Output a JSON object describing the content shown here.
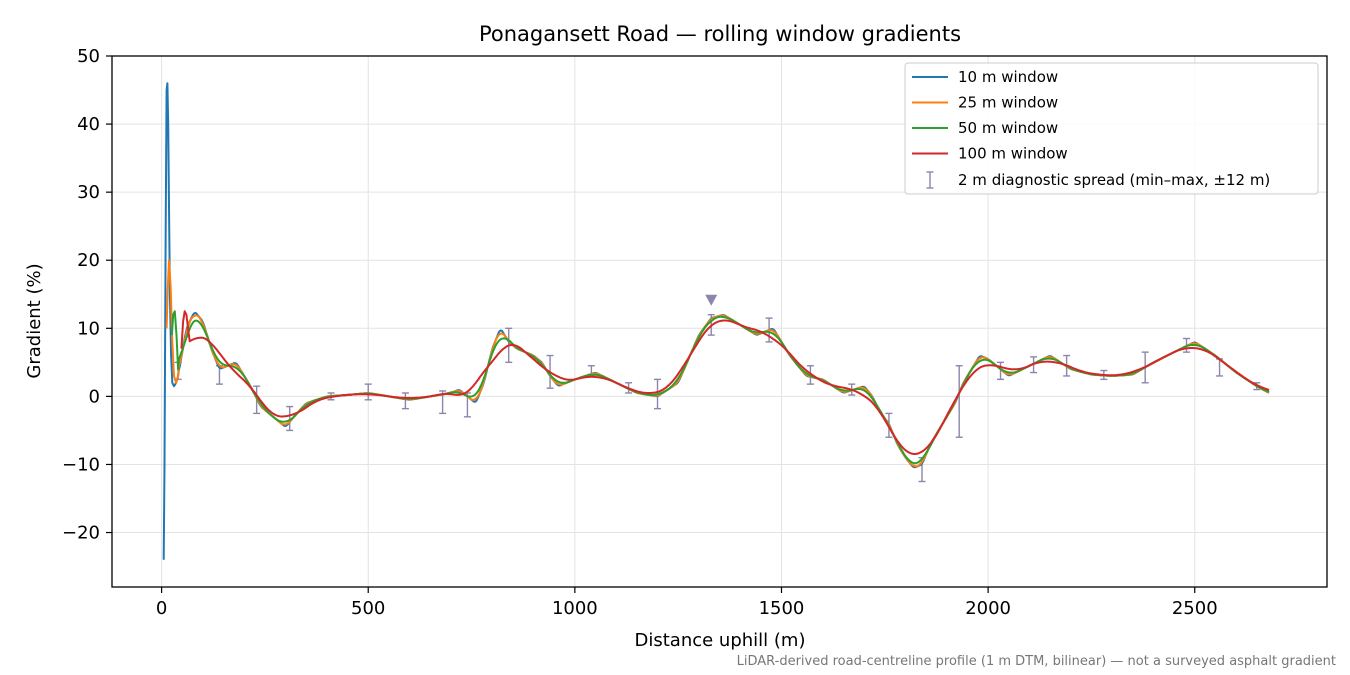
{
  "chart_data": {
    "type": "line",
    "title": "Ponagansett Road — rolling window gradients",
    "xlabel": "Distance uphill (m)",
    "ylabel": "Gradient (%)",
    "xlim": [
      -120,
      2820
    ],
    "ylim": [
      -28,
      50
    ],
    "xticks": [
      0,
      500,
      1000,
      1500,
      2000,
      2500
    ],
    "xtick_labels": [
      "0",
      "500",
      "1000",
      "1500",
      "2000",
      "2500"
    ],
    "yticks": [
      -20,
      -10,
      0,
      10,
      20,
      30,
      40,
      50
    ],
    "ytick_labels": [
      "−20",
      "−10",
      "0",
      "10",
      "20",
      "30",
      "40",
      "50"
    ],
    "grid": true,
    "legend_position": "top-right",
    "footnote": "LiDAR-derived road-centreline profile (1 m DTM, bilinear) — not a surveyed asphalt gradient",
    "base_profile": {
      "x": [
        40,
        60,
        80,
        100,
        120,
        140,
        160,
        180,
        200,
        220,
        240,
        260,
        280,
        300,
        320,
        350,
        400,
        450,
        500,
        550,
        600,
        650,
        700,
        720,
        740,
        760,
        780,
        800,
        820,
        840,
        860,
        880,
        900,
        920,
        940,
        960,
        1000,
        1050,
        1100,
        1150,
        1200,
        1250,
        1300,
        1330,
        1360,
        1400,
        1440,
        1480,
        1520,
        1560,
        1600,
        1650,
        1700,
        1720,
        1740,
        1760,
        1780,
        1800,
        1820,
        1840,
        1860,
        1880,
        1900,
        1920,
        1940,
        1960,
        1980,
        2000,
        2050,
        2100,
        2150,
        2200,
        2250,
        2300,
        2350,
        2400,
        2450,
        2500,
        2550,
        2600,
        2650,
        2680
      ],
      "y": [
        3,
        10,
        12.5,
        11,
        7,
        4,
        4.5,
        5,
        3,
        1,
        -1.5,
        -2.5,
        -3.5,
        -4.5,
        -3,
        -1,
        0,
        0.2,
        0.5,
        0,
        -0.5,
        0,
        0.5,
        1,
        0,
        -1,
        2,
        7,
        10,
        8,
        7,
        6.5,
        6,
        5,
        3,
        1.5,
        2.5,
        3.5,
        2,
        0.5,
        0,
        2,
        9,
        11.5,
        12,
        10.5,
        9,
        10,
        6,
        3,
        2.5,
        0.5,
        1.5,
        0,
        -2.5,
        -4,
        -7,
        -9,
        -10.5,
        -10,
        -7,
        -5,
        -3,
        -1,
        2,
        4,
        6,
        5.5,
        3,
        4.5,
        6,
        4,
        3.2,
        3,
        3.2,
        5,
        6.5,
        8,
        6,
        3.5,
        1.5,
        0.5
      ]
    },
    "series": [
      {
        "name": "10 m window",
        "color": "#1f77b4",
        "window": 10,
        "spike_x": [
          5,
          7,
          10,
          12,
          14,
          16,
          18,
          20,
          23,
          26,
          30,
          35,
          40
        ],
        "spike_y": [
          -24,
          -10,
          25,
          45,
          46,
          40,
          28,
          15,
          6,
          2,
          1.5,
          2,
          3
        ]
      },
      {
        "name": "25 m window",
        "color": "#ff7f0e",
        "window": 25,
        "spike_x": [
          12,
          15,
          18,
          22,
          26,
          30,
          35,
          40
        ],
        "spike_y": [
          10,
          16,
          20,
          16,
          8,
          3,
          2,
          3
        ]
      },
      {
        "name": "50 m window",
        "color": "#2ca02c",
        "window": 50,
        "spike_x": [
          25,
          28,
          32,
          36,
          40
        ],
        "spike_y": [
          9,
          12,
          12.5,
          9,
          4
        ]
      },
      {
        "name": "100 m window",
        "color": "#d62728",
        "window": 100,
        "spike_x": [
          48,
          52,
          56,
          60,
          66
        ],
        "spike_y": [
          7,
          11,
          12.5,
          12,
          9
        ]
      }
    ],
    "diagnostic_spread": {
      "label": "2 m diagnostic spread (min–max, ±12 m)",
      "color": "#8c85ad",
      "x": [
        40,
        140,
        230,
        310,
        410,
        500,
        590,
        680,
        740,
        840,
        940,
        1040,
        1130,
        1200,
        1330,
        1470,
        1570,
        1670,
        1760,
        1840,
        1930,
        2030,
        2110,
        2190,
        2280,
        2380,
        2480,
        2560,
        2650
      ],
      "ymin": [
        2.5,
        1.8,
        -2.5,
        -5,
        -0.5,
        -0.5,
        -1.8,
        -2.5,
        -3,
        5,
        1.2,
        3,
        0.5,
        -1.8,
        9,
        8,
        1.8,
        0.2,
        -6,
        -12.5,
        -6,
        2.5,
        3.5,
        3,
        2.5,
        2,
        6.5,
        3,
        1
      ],
      "ymax": [
        5,
        4.5,
        1.5,
        -1.5,
        0.5,
        1.8,
        0.5,
        0.8,
        0.5,
        10,
        6,
        4.5,
        2,
        2.5,
        12,
        11.5,
        4.5,
        1.8,
        -2.5,
        -9,
        4.5,
        5,
        5.8,
        6,
        3.8,
        6.5,
        8.5,
        5.5,
        2
      ]
    },
    "highlight_marker": {
      "x": 1330,
      "y": 14.2,
      "color": "#8c85ad"
    }
  }
}
